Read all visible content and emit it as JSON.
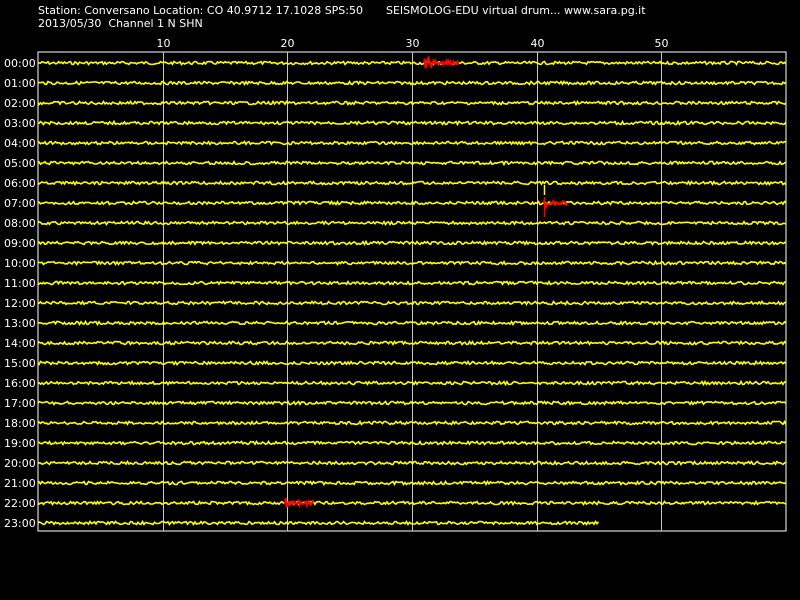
{
  "header": {
    "station_line": "Station: Conversano Location: CO 40.9712 17.1028 SPS:50",
    "title_line": "SEISMOLOG-EDU virtual drum... www.sara.pg.it",
    "date_line": "2013/05/30  Channel 1 N SHN"
  },
  "chart_data": {
    "type": "line",
    "title": "",
    "xlabel": "",
    "ylabel": "",
    "xlim": [
      0,
      60
    ],
    "x_ticks": [
      10,
      20,
      30,
      40,
      50
    ],
    "grid": true,
    "rows": [
      "00:00",
      "01:00",
      "02:00",
      "03:00",
      "04:00",
      "05:00",
      "06:00",
      "07:00",
      "08:00",
      "09:00",
      "10:00",
      "11:00",
      "12:00",
      "13:00",
      "14:00",
      "15:00",
      "16:00",
      "17:00",
      "18:00",
      "19:00",
      "20:00",
      "21:00",
      "22:00",
      "23:00"
    ],
    "trace_end_minute": 45.0,
    "events": [
      {
        "row": "00:00",
        "start": 31.0,
        "end": 33.8,
        "spike_start": 31.0,
        "spike_end": 31.6
      },
      {
        "row": "07:00",
        "start": 40.6,
        "end": 42.6,
        "spike_start": 40.6,
        "spike_end": 40.9
      },
      {
        "row": "22:00",
        "start": 19.8,
        "end": 22.2,
        "spike_start": 19.8,
        "spike_end": 20.1
      }
    ],
    "colors": {
      "background": "#000000",
      "trace": "#ffff00",
      "event": "#ff0000",
      "grid": "#ffffff",
      "text": "#ffffff"
    }
  }
}
